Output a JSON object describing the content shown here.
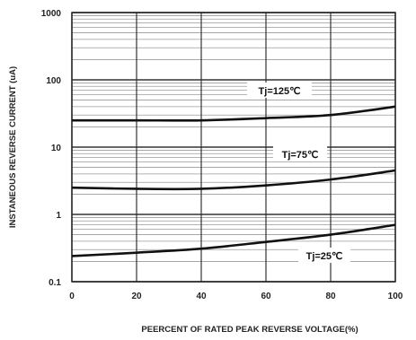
{
  "chart_data": {
    "type": "line",
    "title": "",
    "xlabel": "PEERCENT OF RATED PEAK REVERSE VOLTAGE(%)",
    "ylabel": "INSTANEOUS REVERSE CURRENT (uA)",
    "xlim": [
      0,
      100
    ],
    "ylim": [
      0.1,
      1000
    ],
    "yscale": "log",
    "grid": true,
    "x_ticks": [
      "0",
      "20",
      "40",
      "60",
      "80",
      "100"
    ],
    "y_ticks": [
      "0.1",
      "1",
      "10",
      "100",
      "1000"
    ],
    "series": [
      {
        "name": "Tj=125℃",
        "x": [
          0,
          20,
          40,
          60,
          80,
          100
        ],
        "y": [
          25,
          25,
          25,
          27,
          30,
          40
        ]
      },
      {
        "name": "Tj=75℃",
        "x": [
          0,
          20,
          40,
          60,
          80,
          100
        ],
        "y": [
          2.5,
          2.4,
          2.4,
          2.7,
          3.3,
          4.5
        ]
      },
      {
        "name": "Tj=25℃",
        "x": [
          0,
          20,
          40,
          60,
          80,
          100
        ],
        "y": [
          0.24,
          0.27,
          0.31,
          0.39,
          0.5,
          0.7
        ]
      }
    ],
    "annotations": [
      "Tj=125℃",
      "Tj=75℃",
      "Tj=25℃"
    ]
  }
}
